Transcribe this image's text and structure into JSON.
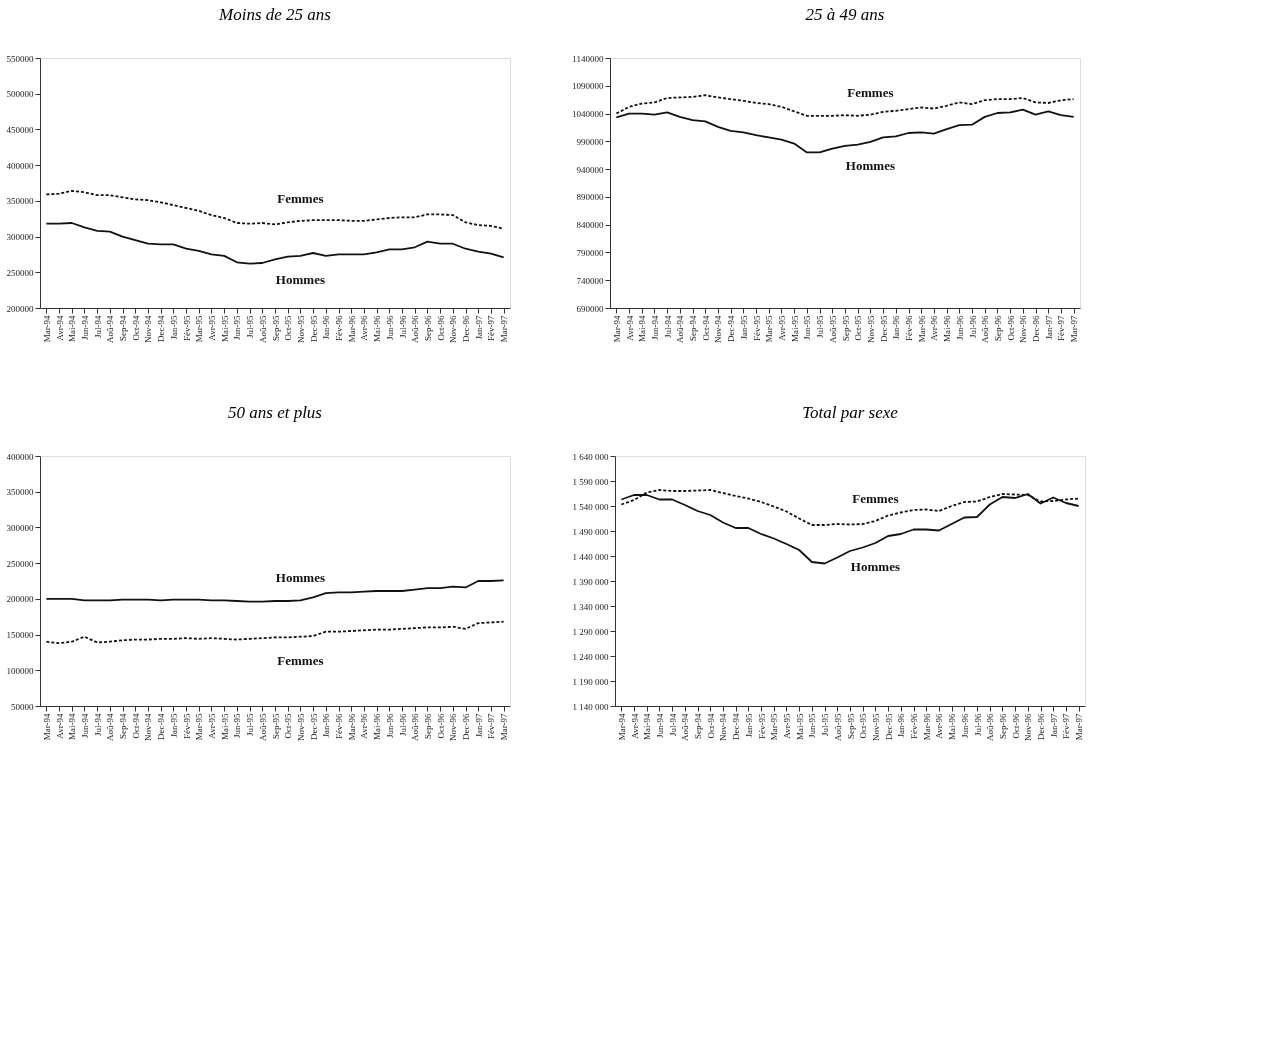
{
  "chart_data": [
    {
      "type": "line",
      "title": "Moins de 25 ans",
      "categories": [
        "Mar-94",
        "Avr-94",
        "Mai-94",
        "Jun-94",
        "Jul-94",
        "Aoû-94",
        "Sep-94",
        "Oct-94",
        "Nov-94",
        "Dec-94",
        "Jan-95",
        "Fév-95",
        "Mar-95",
        "Avr-95",
        "Mai-95",
        "Jun-95",
        "Jul-95",
        "Aoû-95",
        "Sep-95",
        "Oct-95",
        "Nov-95",
        "Dec-95",
        "Jan-96",
        "Fév-96",
        "Mar-96",
        "Avr-96",
        "Mai-96",
        "Jun-96",
        "Jul-96",
        "Aoû-96",
        "Sep-96",
        "Oct-96",
        "Nov-96",
        "Dec-96",
        "Jan-97",
        "Fév-97",
        "Mar-97"
      ],
      "ylim": [
        200000,
        550000
      ],
      "yticks": [
        200000,
        250000,
        300000,
        350000,
        400000,
        450000,
        500000,
        550000
      ],
      "grid": false,
      "marker": "none",
      "series": [
        {
          "name": "Hommes",
          "color": "#111111",
          "line_style": "solid",
          "values": [
            318000,
            318000,
            319000,
            313000,
            308000,
            307000,
            300000,
            295000,
            290000,
            289000,
            289000,
            283000,
            280000,
            275000,
            273000,
            264000,
            262000,
            263000,
            268000,
            272000,
            273000,
            277000,
            273000,
            275000,
            275000,
            275000,
            278000,
            282000,
            282000,
            285000,
            293000,
            290000,
            290000,
            283000,
            279000,
            276000,
            271000
          ]
        },
        {
          "name": "Femmes",
          "color": "#111111",
          "line_style": "dotted",
          "values": [
            359000,
            360000,
            364000,
            362000,
            358000,
            358000,
            355000,
            352000,
            351000,
            348000,
            344000,
            340000,
            336000,
            330000,
            326000,
            319000,
            318000,
            319000,
            317000,
            320000,
            322000,
            323000,
            323000,
            323000,
            322000,
            322000,
            324000,
            326000,
            327000,
            327000,
            331000,
            331000,
            330000,
            320000,
            316000,
            315000,
            311000
          ]
        }
      ]
    },
    {
      "type": "line",
      "title": "25 à 49 ans",
      "categories": [
        "Mar-94",
        "Avr-94",
        "Mai-94",
        "Jun-94",
        "Jul-94",
        "Aoû-94",
        "Sep-94",
        "Oct-94",
        "Nov-94",
        "Dec-94",
        "Jan-95",
        "Fév-95",
        "Mar-95",
        "Avr-95",
        "Mai-95",
        "Jun-95",
        "Jul-95",
        "Aoû-95",
        "Sep-95",
        "Oct-95",
        "Nov-95",
        "Dec-95",
        "Jan-96",
        "Fév-96",
        "Mar-96",
        "Avr-96",
        "Mai-96",
        "Jun-96",
        "Jul-96",
        "Aoû-96",
        "Sep-96",
        "Oct-96",
        "Nov-96",
        "Dec-96",
        "Jan-97",
        "Fév-97",
        "Mar-97"
      ],
      "ylim": [
        690000,
        1140000
      ],
      "yticks": [
        690000,
        740000,
        790000,
        840000,
        890000,
        940000,
        990000,
        1040000,
        1090000,
        1140000
      ],
      "grid": false,
      "marker": "none",
      "series": [
        {
          "name": "Hommes",
          "color": "#111111",
          "line_style": "solid",
          "values": [
            1033000,
            1040000,
            1040000,
            1038000,
            1042000,
            1034000,
            1028000,
            1026000,
            1016000,
            1009000,
            1006000,
            1001000,
            997000,
            993000,
            986000,
            970000,
            970000,
            977000,
            982000,
            984000,
            989000,
            997000,
            999000,
            1005000,
            1006000,
            1004000,
            1012000,
            1019000,
            1020000,
            1034000,
            1041000,
            1042000,
            1047000,
            1038000,
            1044000,
            1037000,
            1034000
          ]
        },
        {
          "name": "Femmes",
          "color": "#111111",
          "line_style": "dotted",
          "values": [
            1040000,
            1052000,
            1058000,
            1060000,
            1068000,
            1069000,
            1070000,
            1073000,
            1069000,
            1066000,
            1063000,
            1059000,
            1057000,
            1052000,
            1044000,
            1036000,
            1036000,
            1036000,
            1037000,
            1036000,
            1038000,
            1043000,
            1045000,
            1048000,
            1051000,
            1049000,
            1054000,
            1060000,
            1057000,
            1064000,
            1066000,
            1066000,
            1068000,
            1060000,
            1059000,
            1064000,
            1066000
          ]
        }
      ]
    },
    {
      "type": "line",
      "title": "50 ans et plus",
      "categories": [
        "Mar-94",
        "Avr-94",
        "Mai-94",
        "Jun-94",
        "Jul-94",
        "Aoû-94",
        "Sep-94",
        "Oct-94",
        "Nov-94",
        "Dec-94",
        "Jan-95",
        "Fév-95",
        "Mar-95",
        "Avr-95",
        "Mai-95",
        "Jun-95",
        "Jul-95",
        "Aoû-95",
        "Sep-95",
        "Oct-95",
        "Nov-95",
        "Dec-95",
        "Jan-96",
        "Fév-96",
        "Mar-96",
        "Avr-96",
        "Mai-96",
        "Jun-96",
        "Jul-96",
        "Aoû-96",
        "Sep-96",
        "Oct-96",
        "Nov-96",
        "Dec-96",
        "Jan-97",
        "Fév-97",
        "Mar-97"
      ],
      "ylim": [
        50000,
        400000
      ],
      "yticks": [
        50000,
        100000,
        150000,
        200000,
        250000,
        300000,
        350000,
        400000
      ],
      "grid": false,
      "marker": "none",
      "series": [
        {
          "name": "Hommes",
          "color": "#111111",
          "line_style": "solid",
          "values": [
            200000,
            200000,
            200000,
            198000,
            198000,
            198000,
            199000,
            199000,
            199000,
            198000,
            199000,
            199000,
            199000,
            198000,
            198000,
            197000,
            196000,
            196000,
            197000,
            197000,
            198000,
            202000,
            208000,
            209000,
            209000,
            210000,
            211000,
            211000,
            211000,
            213000,
            215000,
            215000,
            217000,
            216000,
            225000,
            225000,
            226000
          ]
        },
        {
          "name": "Femmes",
          "color": "#111111",
          "line_style": "dotted",
          "values": [
            140000,
            138000,
            140000,
            147000,
            139000,
            140000,
            142000,
            143000,
            143000,
            144000,
            144000,
            145000,
            144000,
            145000,
            144000,
            143000,
            144000,
            145000,
            146000,
            146000,
            147000,
            148000,
            154000,
            154000,
            155000,
            156000,
            157000,
            157000,
            158000,
            159000,
            160000,
            160000,
            161000,
            158000,
            166000,
            167000,
            168000
          ]
        }
      ]
    },
    {
      "type": "line",
      "title": "Total par sexe",
      "categories": [
        "Mar-94",
        "Avr-94",
        "Mai-94",
        "Jun-94",
        "Jul-94",
        "Aoû-94",
        "Sep-94",
        "Oct-94",
        "Nov-94",
        "Dec-94",
        "Jan-95",
        "Fév-95",
        "Mar-95",
        "Avr-95",
        "Mai-95",
        "Jun-95",
        "Jul-95",
        "Aoû-95",
        "Sep-95",
        "Oct-95",
        "Nov-95",
        "Dec-95",
        "Jan-96",
        "Fév-96",
        "Mar-96",
        "Avr-96",
        "Mai-96",
        "Jun-96",
        "Jul-96",
        "Aoû-96",
        "Sep-96",
        "Oct-96",
        "Nov-96",
        "Dec-96",
        "Jan-97",
        "Fév-97",
        "Mar-97"
      ],
      "ylim": [
        1140000,
        1640000
      ],
      "yticks": [
        {
          "value": 1140000,
          "label": "1 140 000"
        },
        {
          "value": 1190000,
          "label": "1 190 000"
        },
        {
          "value": 1240000,
          "label": "1 240 000"
        },
        {
          "value": 1290000,
          "label": "1 290 000"
        },
        {
          "value": 1340000,
          "label": "1 340 000"
        },
        {
          "value": 1390000,
          "label": "1 390 000"
        },
        {
          "value": 1440000,
          "label": "1 440 000"
        },
        {
          "value": 1490000,
          "label": "1 490 000"
        },
        {
          "value": 1540000,
          "label": "1 540 000"
        },
        {
          "value": 1590000,
          "label": "1 590 000"
        },
        {
          "value": 1640000,
          "label": "1 640 000"
        }
      ],
      "grid": false,
      "marker": "none",
      "series": [
        {
          "name": "Hommes",
          "color": "#111111",
          "line_style": "solid",
          "values": [
            1553000,
            1562000,
            1562000,
            1553000,
            1553000,
            1542000,
            1530000,
            1522000,
            1507000,
            1496000,
            1496000,
            1484000,
            1475000,
            1464000,
            1452000,
            1428000,
            1425000,
            1437000,
            1450000,
            1457000,
            1466000,
            1480000,
            1484000,
            1493000,
            1493000,
            1491000,
            1504000,
            1517000,
            1518000,
            1543000,
            1558000,
            1556000,
            1564000,
            1545000,
            1557000,
            1546000,
            1540000
          ]
        },
        {
          "name": "Femmes",
          "color": "#111111",
          "line_style": "dotted",
          "values": [
            1543000,
            1552000,
            1567000,
            1572000,
            1570000,
            1570000,
            1571000,
            1572000,
            1566000,
            1560000,
            1555000,
            1548000,
            1539000,
            1529000,
            1515000,
            1502000,
            1502000,
            1504000,
            1503000,
            1504000,
            1510000,
            1521000,
            1527000,
            1532000,
            1533000,
            1530000,
            1540000,
            1548000,
            1549000,
            1558000,
            1564000,
            1563000,
            1562000,
            1549000,
            1550000,
            1553000,
            1555000
          ]
        }
      ]
    }
  ]
}
